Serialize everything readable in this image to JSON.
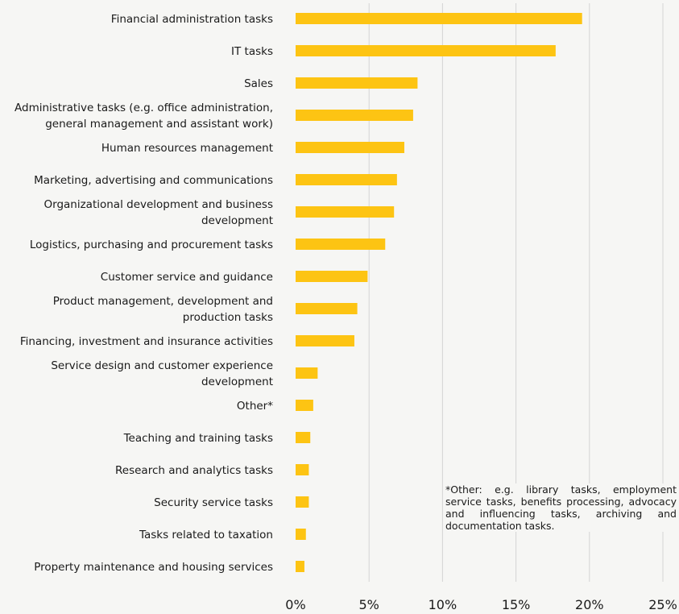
{
  "chart_data": {
    "type": "bar",
    "orientation": "horizontal",
    "categories": [
      [
        "Financial administration tasks"
      ],
      [
        "IT tasks"
      ],
      [
        "Sales"
      ],
      [
        "Administrative tasks (e.g. office administration,",
        "general management and assistant work)"
      ],
      [
        "Human resources management"
      ],
      [
        "Marketing, advertising and communications"
      ],
      [
        "Organizational development and business",
        "development"
      ],
      [
        "Logistics, purchasing and procurement tasks"
      ],
      [
        "Customer service and guidance"
      ],
      [
        "Product management, development and",
        "production tasks"
      ],
      [
        "Financing, investment and insurance activities"
      ],
      [
        "Service design and customer experience",
        "development"
      ],
      [
        "Other*"
      ],
      [
        "Teaching and training tasks"
      ],
      [
        "Research and analytics tasks"
      ],
      [
        "Security service tasks"
      ],
      [
        "Tasks related to taxation"
      ],
      [
        "Property maintenance and housing services"
      ]
    ],
    "values": [
      19.5,
      17.7,
      8.3,
      8.0,
      7.4,
      6.9,
      6.7,
      6.1,
      4.9,
      4.2,
      4.0,
      1.5,
      1.2,
      1.0,
      0.9,
      0.9,
      0.7,
      0.6
    ],
    "xlim": [
      0,
      25
    ],
    "xticks": [
      0,
      5,
      10,
      15,
      20,
      25
    ],
    "xtick_labels": [
      "0%",
      "5%",
      "10%",
      "15%",
      "20%",
      "25%"
    ],
    "grid": "vertical",
    "bar_color": "#fdc413"
  },
  "footnote": "*Other: e.g. library tasks, employment service tasks, benefits processing, advocacy and influencing tasks, archiving and documentation tasks."
}
